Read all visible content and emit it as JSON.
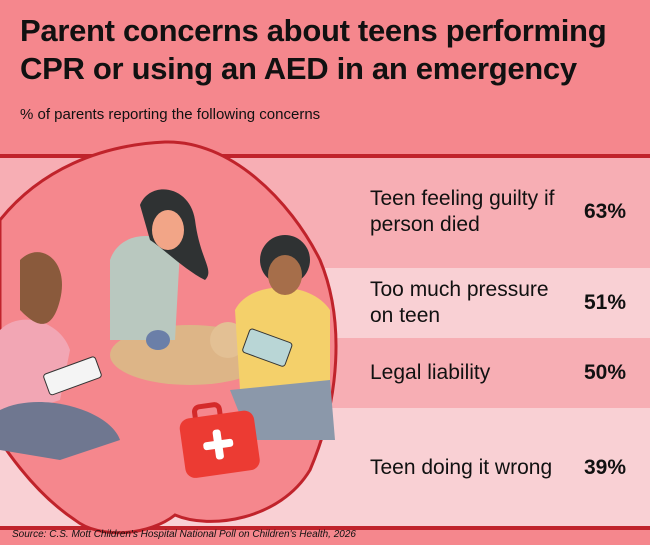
{
  "title": "Parent concerns about teens performing CPR or using an AED in an emergency",
  "subtitle": "% of parents reporting the following concerns",
  "source": "Source: C.S. Mott Children's Hospital National Poll on Children's Health, 2026",
  "colors": {
    "background": "#f5878d",
    "row_dark": "#f7aeb4",
    "row_light": "#f9d0d4",
    "accent": "#c0232b"
  },
  "chart_data": {
    "type": "table",
    "title": "Parent concerns about teens performing CPR or using an AED in an emergency",
    "subtitle": "% of parents reporting the following concerns",
    "categories": [
      "Teen feeling guilty if person died",
      "Too much pressure on teen",
      "Legal liability",
      "Teen doing it wrong"
    ],
    "values": [
      63,
      51,
      50,
      39
    ],
    "labels": [
      "63%",
      "51%",
      "50%",
      "39%"
    ]
  }
}
